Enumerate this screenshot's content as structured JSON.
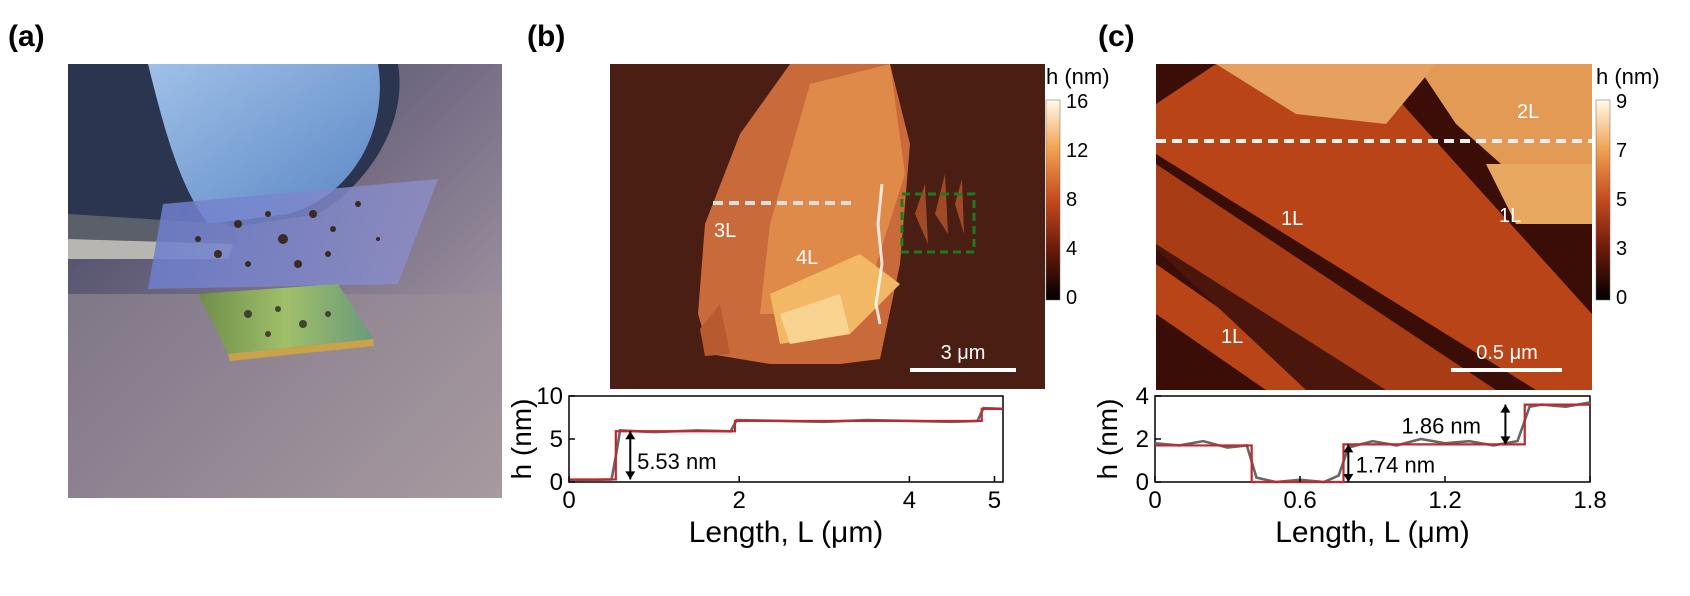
{
  "panels": {
    "a": {
      "label": "(a)"
    },
    "b": {
      "label": "(b)",
      "image": {
        "layer_labels": [
          "3L",
          "4L"
        ],
        "scale_bar": "3 μm"
      },
      "colorbar": {
        "title": "h (nm)",
        "ticks": [
          "16",
          "12",
          "8",
          "4",
          "0"
        ],
        "range": [
          0,
          16
        ]
      }
    },
    "c": {
      "label": "(c)",
      "image": {
        "layer_labels": [
          "2L",
          "1L",
          "1L",
          "1L"
        ],
        "scale_bar": "0.5 μm"
      },
      "colorbar": {
        "title": "h (nm)",
        "ticks": [
          "9",
          "7",
          "5",
          "3",
          "0"
        ],
        "range": [
          0,
          9
        ]
      }
    }
  },
  "chart_data": [
    {
      "type": "line",
      "panel": "b",
      "xlabel": "Length, L (μm)",
      "ylabel": "h (nm)",
      "xlim": [
        0,
        5.1
      ],
      "ylim": [
        0,
        10
      ],
      "xticks": [
        "0",
        "2",
        "4",
        "5"
      ],
      "yticks": [
        "0",
        "5",
        "10"
      ],
      "series": [
        {
          "color": "#c0282d",
          "x": [
            0,
            0.55,
            0.55,
            1.95,
            1.95,
            4.85,
            4.85,
            5.1
          ],
          "y": [
            0.3,
            0.3,
            5.9,
            5.9,
            7.1,
            7.1,
            8.5,
            8.5
          ]
        },
        {
          "color": "#666666",
          "x": [
            0,
            0.5,
            0.55,
            0.6,
            1.0,
            1.5,
            1.9,
            1.97,
            2.5,
            3.0,
            3.5,
            4.0,
            4.5,
            4.8,
            4.87,
            5.1
          ],
          "y": [
            0.2,
            0.3,
            3.0,
            6.0,
            5.8,
            6.0,
            5.9,
            7.2,
            7.1,
            7.0,
            7.2,
            7.1,
            7.0,
            7.1,
            8.6,
            8.5
          ]
        }
      ],
      "annotation": "5.53 nm"
    },
    {
      "type": "line",
      "panel": "c",
      "xlabel": "Length, L (μm)",
      "ylabel": "h (nm)",
      "xlim": [
        0,
        1.8
      ],
      "ylim": [
        0,
        4
      ],
      "xticks": [
        "0",
        "0.6",
        "1.2",
        "1.8"
      ],
      "yticks": [
        "0",
        "2",
        "4"
      ],
      "series": [
        {
          "color": "#c0282d",
          "x": [
            0,
            0.4,
            0.4,
            0.78,
            0.78,
            1.53,
            1.53,
            1.8
          ],
          "y": [
            1.7,
            1.7,
            0.0,
            0.0,
            1.75,
            1.75,
            3.6,
            3.6
          ]
        },
        {
          "color": "#666666",
          "x": [
            0,
            0.1,
            0.2,
            0.3,
            0.38,
            0.42,
            0.5,
            0.6,
            0.7,
            0.76,
            0.8,
            0.9,
            1.0,
            1.1,
            1.2,
            1.3,
            1.4,
            1.5,
            1.55,
            1.6,
            1.7,
            1.8
          ],
          "y": [
            1.8,
            1.7,
            1.9,
            1.6,
            1.7,
            0.2,
            0.0,
            0.1,
            0.0,
            0.3,
            1.6,
            1.9,
            1.7,
            2.0,
            1.8,
            1.9,
            1.7,
            1.9,
            3.5,
            3.6,
            3.5,
            3.7
          ]
        }
      ],
      "annotations": [
        "1.86 nm",
        "1.74 nm"
      ]
    }
  ]
}
